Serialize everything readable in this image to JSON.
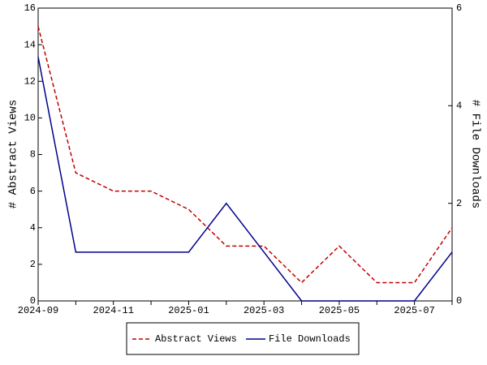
{
  "chart_data": {
    "type": "line",
    "categories": [
      "2024-09",
      null,
      "2024-11",
      null,
      "2025-01",
      null,
      "2025-03",
      null,
      "2025-05",
      null,
      "2025-07",
      null
    ],
    "series": [
      {
        "name": "Abstract Views",
        "color": "#c00000",
        "dash": "dashed",
        "values": [
          15,
          7,
          6,
          6,
          5,
          3,
          3,
          1,
          3,
          1,
          1,
          4
        ]
      },
      {
        "name": "File Downloads",
        "color": "#00008b",
        "axis": "y2",
        "values": [
          5,
          1,
          1,
          1,
          1,
          2,
          1,
          0,
          0,
          0,
          0,
          1
        ]
      }
    ],
    "ylabel": "# Abstract Views",
    "y2label": "# File Downloads",
    "ylim": [
      0,
      16
    ],
    "yticks": [
      0,
      2,
      4,
      6,
      8,
      10,
      12,
      14,
      16
    ],
    "y2lim": [
      0,
      6
    ],
    "y2ticks": [
      0,
      2,
      4,
      6
    ],
    "legend": "bottom"
  }
}
